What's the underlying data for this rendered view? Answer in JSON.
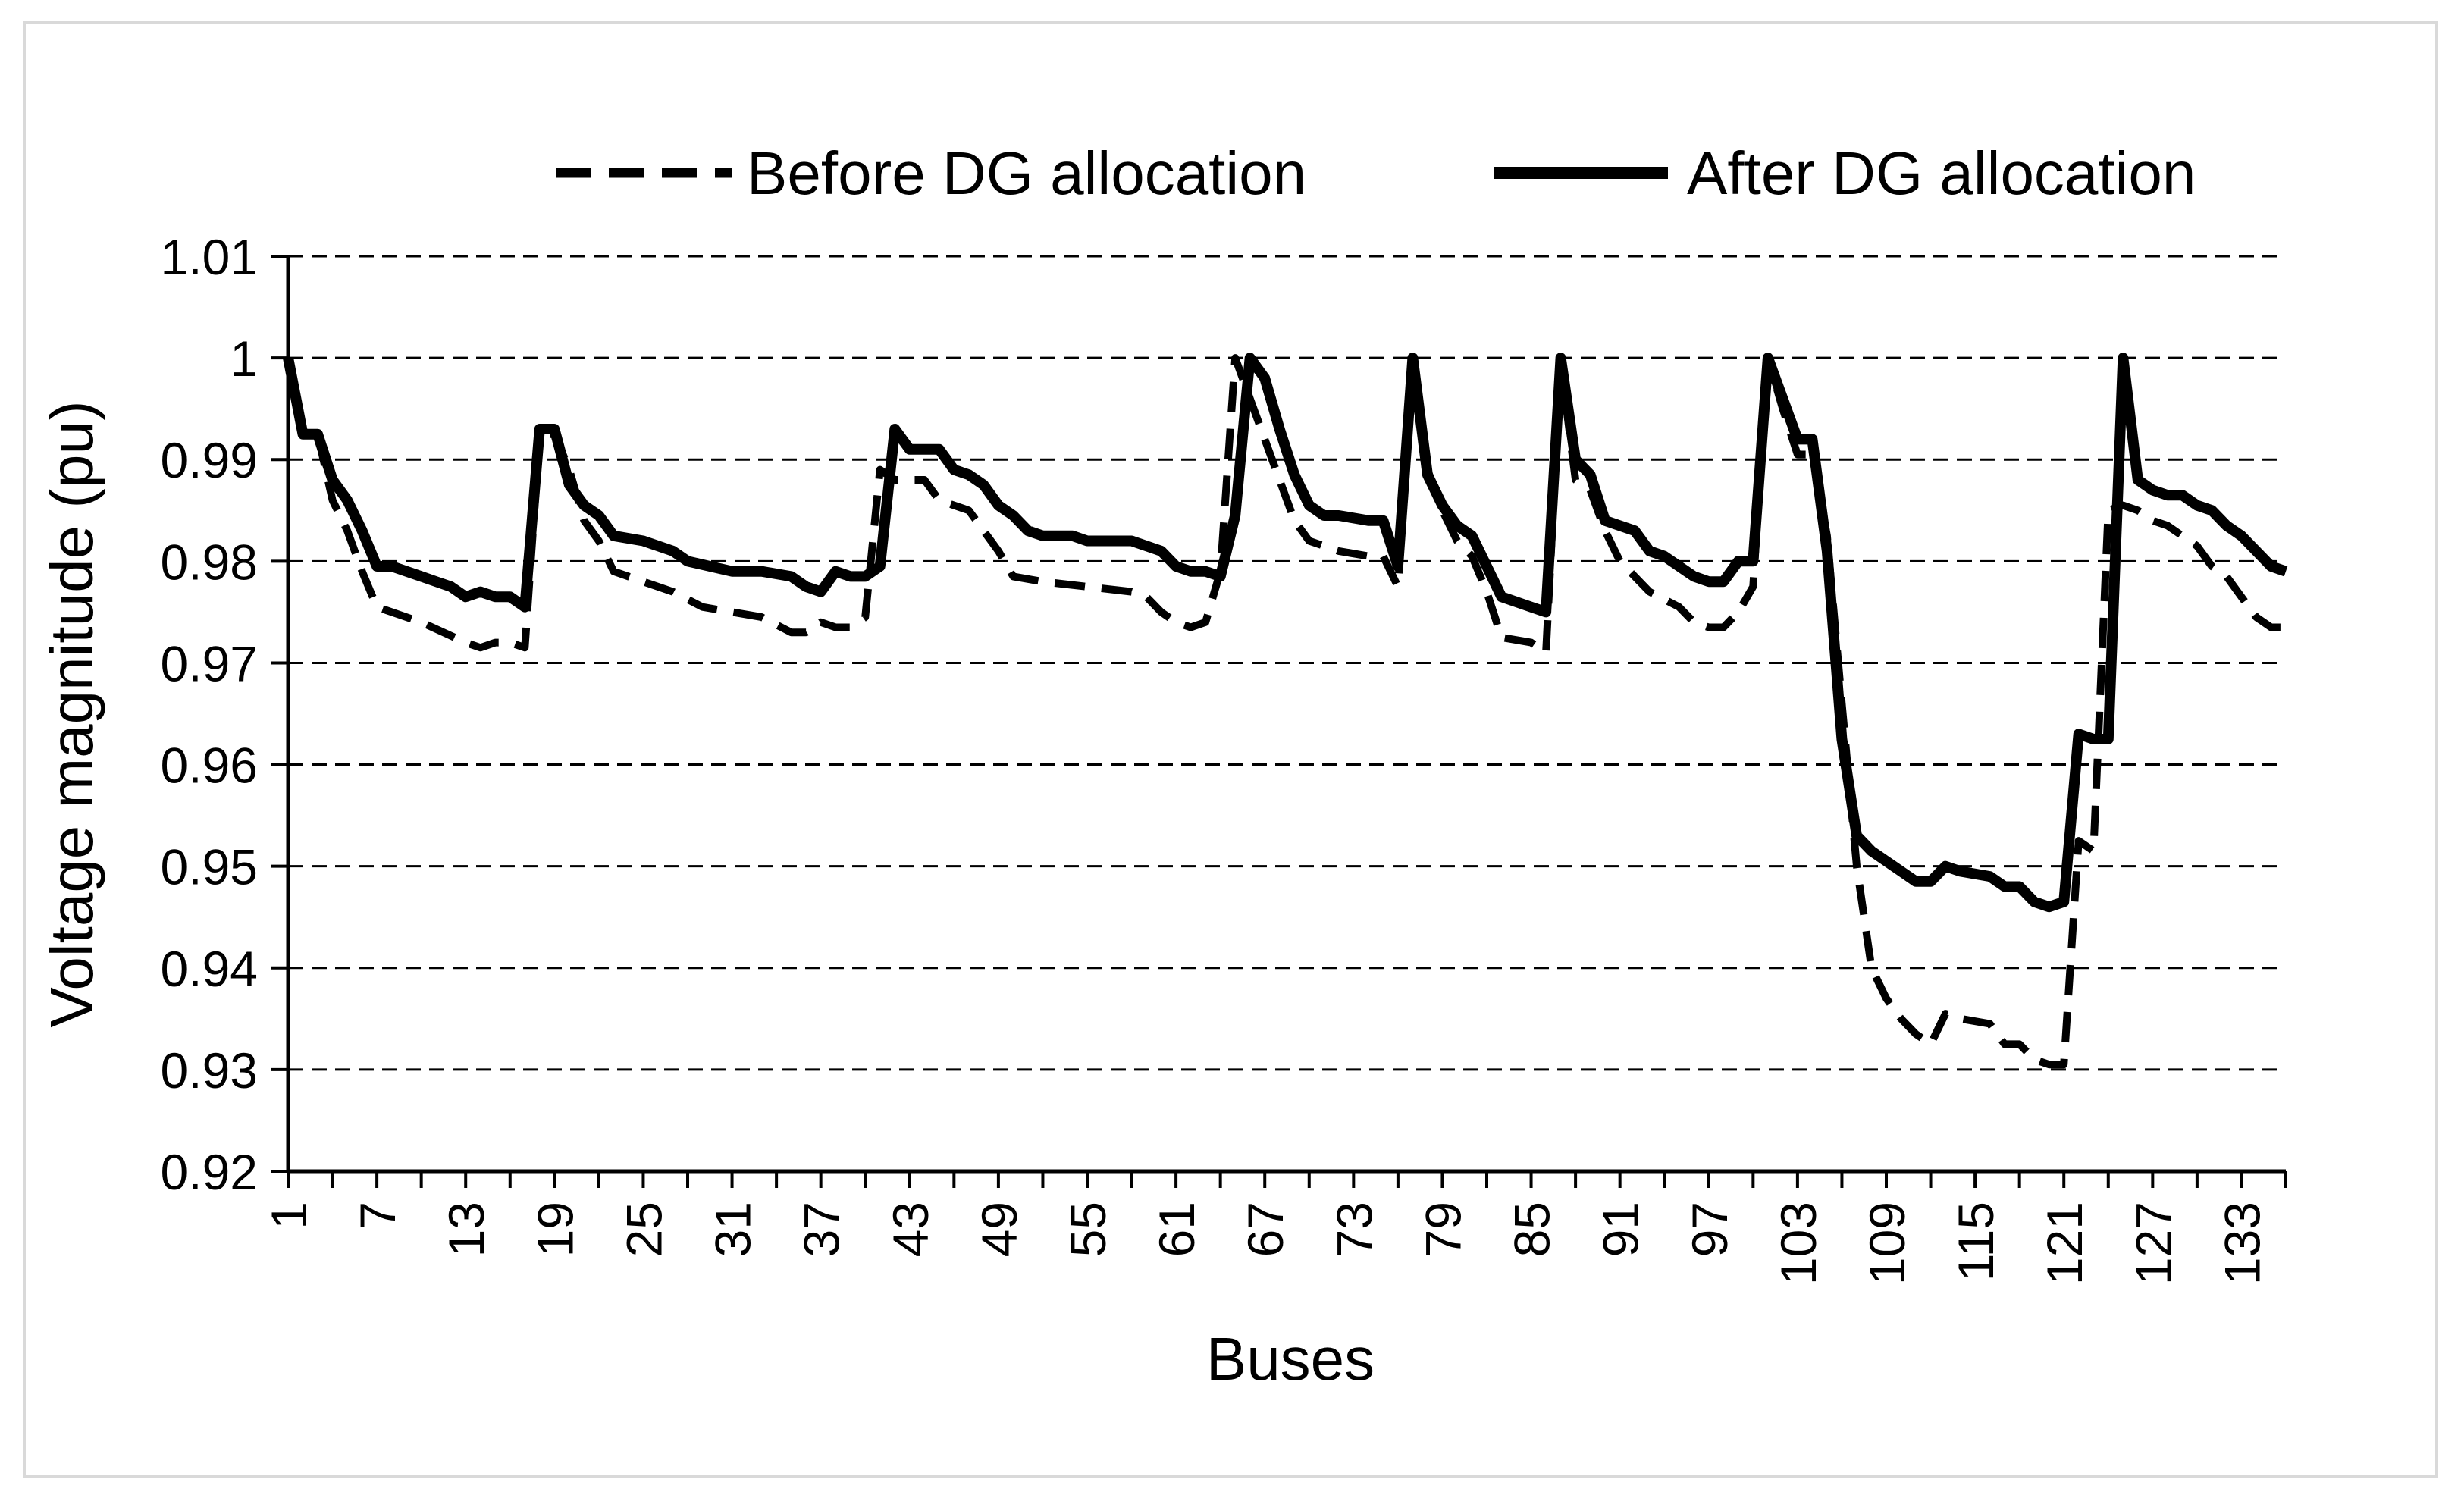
{
  "chart_data": {
    "type": "line",
    "title": "",
    "xlabel": "Buses",
    "ylabel": "Voltage magnitude (pu)",
    "ylim": [
      0.92,
      1.01
    ],
    "yticks": [
      "0.92",
      "0.93",
      "0.94",
      "0.95",
      "0.96",
      "0.97",
      "0.98",
      "0.99",
      "1",
      "1.01"
    ],
    "xlim": [
      1,
      136
    ],
    "xticks": [
      "1",
      "7",
      "13",
      "19",
      "25",
      "31",
      "37",
      "43",
      "49",
      "55",
      "61",
      "67",
      "73",
      "79",
      "85",
      "91",
      "97",
      "103",
      "109",
      "115",
      "121",
      "127",
      "133"
    ],
    "grid": "horizontal dashed",
    "legend_position": "top",
    "series": [
      {
        "name": "Before DG allocation",
        "style": "dashed",
        "color": "#000000",
        "points": [
          [
            1,
            1.0
          ],
          [
            2,
            0.9925
          ],
          [
            3,
            0.9925
          ],
          [
            4,
            0.986
          ],
          [
            5,
            0.983
          ],
          [
            6,
            0.979
          ],
          [
            7,
            0.9755
          ],
          [
            8,
            0.975
          ],
          [
            10,
            0.974
          ],
          [
            13,
            0.972
          ],
          [
            14,
            0.9715
          ],
          [
            15,
            0.972
          ],
          [
            16,
            0.972
          ],
          [
            17,
            0.9715
          ],
          [
            18,
            0.9925
          ],
          [
            19,
            0.9925
          ],
          [
            20,
            0.989
          ],
          [
            21,
            0.984
          ],
          [
            22,
            0.982
          ],
          [
            23,
            0.979
          ],
          [
            25,
            0.978
          ],
          [
            27,
            0.977
          ],
          [
            29,
            0.9755
          ],
          [
            31,
            0.975
          ],
          [
            33,
            0.9745
          ],
          [
            35,
            0.973
          ],
          [
            36,
            0.973
          ],
          [
            37,
            0.974
          ],
          [
            38,
            0.9735
          ],
          [
            39,
            0.9735
          ],
          [
            40,
            0.9745
          ],
          [
            41,
            0.989
          ],
          [
            42,
            0.988
          ],
          [
            44,
            0.988
          ],
          [
            45,
            0.986
          ],
          [
            47,
            0.985
          ],
          [
            49,
            0.981
          ],
          [
            50,
            0.9785
          ],
          [
            52,
            0.978
          ],
          [
            55,
            0.9775
          ],
          [
            58,
            0.977
          ],
          [
            59,
            0.9765
          ],
          [
            60,
            0.975
          ],
          [
            61,
            0.974
          ],
          [
            62,
            0.9735
          ],
          [
            63,
            0.974
          ],
          [
            64,
            0.979
          ],
          [
            65,
            1.0
          ],
          [
            66,
            0.996
          ],
          [
            67,
            0.992
          ],
          [
            68,
            0.988
          ],
          [
            69,
            0.984
          ],
          [
            70,
            0.982
          ],
          [
            72,
            0.981
          ],
          [
            74,
            0.9805
          ],
          [
            75,
            0.9805
          ],
          [
            76,
            0.9775
          ],
          [
            77,
            1.0
          ],
          [
            78,
            0.989
          ],
          [
            79,
            0.985
          ],
          [
            80,
            0.982
          ],
          [
            81,
            0.9805
          ],
          [
            82,
            0.977
          ],
          [
            83,
            0.9725
          ],
          [
            85,
            0.972
          ],
          [
            86,
            0.971
          ],
          [
            87,
            0.9995
          ],
          [
            88,
            0.988
          ],
          [
            89,
            0.987
          ],
          [
            90,
            0.983
          ],
          [
            91,
            0.98
          ],
          [
            93,
            0.977
          ],
          [
            95,
            0.9755
          ],
          [
            96,
            0.974
          ],
          [
            97,
            0.9735
          ],
          [
            98,
            0.9735
          ],
          [
            99,
            0.975
          ],
          [
            100,
            0.9775
          ],
          [
            101,
            1.0
          ],
          [
            102,
            0.995
          ],
          [
            103,
            0.9905
          ],
          [
            104,
            0.9905
          ],
          [
            105,
            0.9825
          ],
          [
            106,
            0.966
          ],
          [
            107,
            0.95
          ],
          [
            108,
            0.94
          ],
          [
            109,
            0.937
          ],
          [
            110,
            0.935
          ],
          [
            111,
            0.9335
          ],
          [
            112,
            0.9325
          ],
          [
            113,
            0.9355
          ],
          [
            114,
            0.935
          ],
          [
            116,
            0.9345
          ],
          [
            117,
            0.9325
          ],
          [
            118,
            0.9325
          ],
          [
            119,
            0.931
          ],
          [
            120,
            0.9305
          ],
          [
            121,
            0.9305
          ],
          [
            122,
            0.9525
          ],
          [
            123,
            0.9515
          ],
          [
            124,
            0.985
          ],
          [
            125,
            0.9855
          ],
          [
            126,
            0.985
          ],
          [
            127,
            0.984
          ],
          [
            128,
            0.9835
          ],
          [
            129,
            0.9825
          ],
          [
            130,
            0.9815
          ],
          [
            131,
            0.9795
          ],
          [
            132,
            0.9785
          ],
          [
            133,
            0.9765
          ],
          [
            134,
            0.9745
          ],
          [
            135,
            0.9735
          ],
          [
            136,
            0.9735
          ]
        ]
      },
      {
        "name": "After DG allocation",
        "style": "solid",
        "color": "#000000",
        "points": [
          [
            1,
            1.0
          ],
          [
            2,
            0.9925
          ],
          [
            3,
            0.9925
          ],
          [
            4,
            0.988
          ],
          [
            5,
            0.986
          ],
          [
            6,
            0.983
          ],
          [
            7,
            0.9795
          ],
          [
            8,
            0.9795
          ],
          [
            10,
            0.9785
          ],
          [
            11,
            0.978
          ],
          [
            12,
            0.9775
          ],
          [
            13,
            0.9765
          ],
          [
            14,
            0.977
          ],
          [
            15,
            0.9765
          ],
          [
            16,
            0.9765
          ],
          [
            17,
            0.9755
          ],
          [
            18,
            0.993
          ],
          [
            19,
            0.993
          ],
          [
            20,
            0.9875
          ],
          [
            21,
            0.9855
          ],
          [
            22,
            0.9845
          ],
          [
            23,
            0.9825
          ],
          [
            25,
            0.982
          ],
          [
            27,
            0.981
          ],
          [
            28,
            0.98
          ],
          [
            31,
            0.979
          ],
          [
            33,
            0.979
          ],
          [
            35,
            0.9785
          ],
          [
            36,
            0.9775
          ],
          [
            37,
            0.977
          ],
          [
            38,
            0.979
          ],
          [
            39,
            0.9785
          ],
          [
            40,
            0.9785
          ],
          [
            41,
            0.9795
          ],
          [
            42,
            0.993
          ],
          [
            43,
            0.991
          ],
          [
            45,
            0.991
          ],
          [
            46,
            0.989
          ],
          [
            47,
            0.9885
          ],
          [
            48,
            0.9875
          ],
          [
            49,
            0.9855
          ],
          [
            50,
            0.9845
          ],
          [
            51,
            0.983
          ],
          [
            52,
            0.9825
          ],
          [
            54,
            0.9825
          ],
          [
            55,
            0.982
          ],
          [
            58,
            0.982
          ],
          [
            60,
            0.981
          ],
          [
            61,
            0.9795
          ],
          [
            62,
            0.979
          ],
          [
            63,
            0.979
          ],
          [
            64,
            0.9785
          ],
          [
            65,
            0.9845
          ],
          [
            66,
            1.0
          ],
          [
            67,
            0.998
          ],
          [
            68,
            0.993
          ],
          [
            69,
            0.9885
          ],
          [
            70,
            0.9855
          ],
          [
            71,
            0.9845
          ],
          [
            72,
            0.9845
          ],
          [
            74,
            0.984
          ],
          [
            75,
            0.984
          ],
          [
            76,
            0.9795
          ],
          [
            77,
            1.0
          ],
          [
            78,
            0.9885
          ],
          [
            79,
            0.9855
          ],
          [
            80,
            0.9835
          ],
          [
            81,
            0.9825
          ],
          [
            82,
            0.9795
          ],
          [
            83,
            0.9765
          ],
          [
            85,
            0.9755
          ],
          [
            86,
            0.975
          ],
          [
            87,
            1.0
          ],
          [
            88,
            0.99
          ],
          [
            89,
            0.9885
          ],
          [
            90,
            0.984
          ],
          [
            92,
            0.983
          ],
          [
            93,
            0.981
          ],
          [
            94,
            0.9805
          ],
          [
            95,
            0.9795
          ],
          [
            96,
            0.9785
          ],
          [
            97,
            0.978
          ],
          [
            98,
            0.978
          ],
          [
            99,
            0.98
          ],
          [
            100,
            0.98
          ],
          [
            101,
            1.0
          ],
          [
            102,
            0.996
          ],
          [
            103,
            0.992
          ],
          [
            104,
            0.992
          ],
          [
            105,
            0.981
          ],
          [
            106,
            0.9625
          ],
          [
            107,
            0.953
          ],
          [
            108,
            0.9515
          ],
          [
            109,
            0.9505
          ],
          [
            110,
            0.9495
          ],
          [
            111,
            0.9485
          ],
          [
            112,
            0.9485
          ],
          [
            113,
            0.95
          ],
          [
            114,
            0.9495
          ],
          [
            116,
            0.949
          ],
          [
            117,
            0.948
          ],
          [
            118,
            0.948
          ],
          [
            119,
            0.9465
          ],
          [
            120,
            0.946
          ],
          [
            121,
            0.9465
          ],
          [
            122,
            0.963
          ],
          [
            123,
            0.9625
          ],
          [
            124,
            0.9625
          ],
          [
            125,
            1.0
          ],
          [
            126,
            0.988
          ],
          [
            127,
            0.987
          ],
          [
            128,
            0.9865
          ],
          [
            129,
            0.9865
          ],
          [
            130,
            0.9855
          ],
          [
            131,
            0.985
          ],
          [
            132,
            0.9835
          ],
          [
            133,
            0.9825
          ],
          [
            134,
            0.981
          ],
          [
            135,
            0.9795
          ],
          [
            136,
            0.979
          ]
        ]
      }
    ]
  }
}
